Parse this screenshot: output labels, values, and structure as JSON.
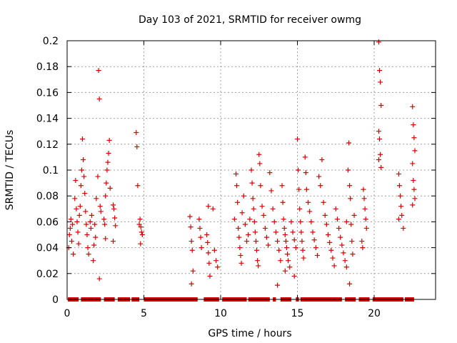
{
  "chart_data": {
    "type": "scatter",
    "title": "Day 103 of 2021, SRMTID for receiver owmg",
    "xlabel": "GPS time / hours",
    "ylabel": "SRMTID / TECUs",
    "xlim": [
      0,
      24
    ],
    "ylim": [
      0,
      0.2
    ],
    "xticks": [
      0,
      5,
      10,
      15,
      20
    ],
    "yticks": [
      0,
      0.02,
      0.04,
      0.06,
      0.08,
      0.1,
      0.12,
      0.14,
      0.16,
      0.18,
      0.2
    ],
    "ytick_labels": [
      "0",
      "0.02",
      "0.04",
      "0.06",
      "0.08",
      "0.1",
      "0.12",
      "0.14",
      "0.16",
      "0.18",
      "0.2"
    ],
    "grid": true,
    "marker": "+",
    "color": "#dd0000",
    "series": [
      {
        "name": "SRMTID",
        "points": [
          [
            0.1,
            0.04
          ],
          [
            0.15,
            0.05
          ],
          [
            0.2,
            0.055
          ],
          [
            0.25,
            0.062
          ],
          [
            0.3,
            0.045
          ],
          [
            0.35,
            0.058
          ],
          [
            0.4,
            0.035
          ],
          [
            0.5,
            0.078
          ],
          [
            0.55,
            0.092
          ],
          [
            0.6,
            0.07
          ],
          [
            0.65,
            0.06
          ],
          [
            0.7,
            0.052
          ],
          [
            0.75,
            0.043
          ],
          [
            0.8,
            0.065
          ],
          [
            0.85,
            0.072
          ],
          [
            0.9,
            0.088
          ],
          [
            0.95,
            0.1
          ],
          [
            1.0,
            0.124
          ],
          [
            1.05,
            0.108
          ],
          [
            1.1,
            0.095
          ],
          [
            1.15,
            0.082
          ],
          [
            1.2,
            0.068
          ],
          [
            1.25,
            0.058
          ],
          [
            1.3,
            0.05
          ],
          [
            1.35,
            0.04
          ],
          [
            1.4,
            0.035
          ],
          [
            1.5,
            0.06
          ],
          [
            1.55,
            0.055
          ],
          [
            1.6,
            0.065
          ],
          [
            1.7,
            0.03
          ],
          [
            1.75,
            0.042
          ],
          [
            1.8,
            0.058
          ],
          [
            1.85,
            0.048
          ],
          [
            1.9,
            0.078
          ],
          [
            2.0,
            0.095
          ],
          [
            2.05,
            0.177
          ],
          [
            2.1,
            0.155
          ],
          [
            2.15,
            0.072
          ],
          [
            2.2,
            0.068
          ],
          [
            2.1,
            0.016
          ],
          [
            2.4,
            0.062
          ],
          [
            2.45,
            0.058
          ],
          [
            2.5,
            0.08
          ],
          [
            2.55,
            0.09
          ],
          [
            2.6,
            0.1
          ],
          [
            2.65,
            0.106
          ],
          [
            2.7,
            0.113
          ],
          [
            2.75,
            0.123
          ],
          [
            2.8,
            0.086
          ],
          [
            2.5,
            0.047
          ],
          [
            3.0,
            0.073
          ],
          [
            3.05,
            0.07
          ],
          [
            3.1,
            0.063
          ],
          [
            3.15,
            0.057
          ],
          [
            3.0,
            0.045
          ],
          [
            4.5,
            0.129
          ],
          [
            4.55,
            0.118
          ],
          [
            4.6,
            0.088
          ],
          [
            4.75,
            0.062
          ],
          [
            4.8,
            0.056
          ],
          [
            4.85,
            0.052
          ],
          [
            4.9,
            0.05
          ],
          [
            4.78,
            0.043
          ],
          [
            4.7,
            0.058
          ],
          [
            8.0,
            0.064
          ],
          [
            8.05,
            0.056
          ],
          [
            8.1,
            0.045
          ],
          [
            8.15,
            0.038
          ],
          [
            8.2,
            0.022
          ],
          [
            8.1,
            0.012
          ],
          [
            8.6,
            0.062
          ],
          [
            8.65,
            0.055
          ],
          [
            8.7,
            0.048
          ],
          [
            8.75,
            0.04
          ],
          [
            9.1,
            0.05
          ],
          [
            9.15,
            0.044
          ],
          [
            9.2,
            0.036
          ],
          [
            9.25,
            0.028
          ],
          [
            9.3,
            0.018
          ],
          [
            9.2,
            0.072
          ],
          [
            9.5,
            0.07
          ],
          [
            9.6,
            0.038
          ],
          [
            9.7,
            0.03
          ],
          [
            9.8,
            0.025
          ],
          [
            10.9,
            0.062
          ],
          [
            11.0,
            0.097
          ],
          [
            11.05,
            0.088
          ],
          [
            11.1,
            0.075
          ],
          [
            11.15,
            0.055
          ],
          [
            11.2,
            0.048
          ],
          [
            11.25,
            0.04
          ],
          [
            11.3,
            0.034
          ],
          [
            11.35,
            0.028
          ],
          [
            11.4,
            0.067
          ],
          [
            11.5,
            0.08
          ],
          [
            11.6,
            0.058
          ],
          [
            11.7,
            0.045
          ],
          [
            11.8,
            0.05
          ],
          [
            11.9,
            0.062
          ],
          [
            12.0,
            0.1
          ],
          [
            12.05,
            0.09
          ],
          [
            12.1,
            0.078
          ],
          [
            12.15,
            0.07
          ],
          [
            12.2,
            0.06
          ],
          [
            12.25,
            0.052
          ],
          [
            12.3,
            0.045
          ],
          [
            12.35,
            0.038
          ],
          [
            12.4,
            0.03
          ],
          [
            12.45,
            0.026
          ],
          [
            12.5,
            0.112
          ],
          [
            12.55,
            0.105
          ],
          [
            12.6,
            0.088
          ],
          [
            12.7,
            0.072
          ],
          [
            12.8,
            0.065
          ],
          [
            12.9,
            0.055
          ],
          [
            13.0,
            0.048
          ],
          [
            13.1,
            0.042
          ],
          [
            13.2,
            0.098
          ],
          [
            13.3,
            0.084
          ],
          [
            13.4,
            0.07
          ],
          [
            13.5,
            0.06
          ],
          [
            13.6,
            0.052
          ],
          [
            13.7,
            0.045
          ],
          [
            13.8,
            0.038
          ],
          [
            13.9,
            0.03
          ],
          [
            14.0,
            0.088
          ],
          [
            14.05,
            0.075
          ],
          [
            14.1,
            0.062
          ],
          [
            14.15,
            0.055
          ],
          [
            14.2,
            0.05
          ],
          [
            14.25,
            0.045
          ],
          [
            14.3,
            0.04
          ],
          [
            14.35,
            0.035
          ],
          [
            14.4,
            0.03
          ],
          [
            14.5,
            0.025
          ],
          [
            14.6,
            0.06
          ],
          [
            14.7,
            0.052
          ],
          [
            14.8,
            0.046
          ],
          [
            14.9,
            0.04
          ],
          [
            15.0,
            0.124
          ],
          [
            15.05,
            0.1
          ],
          [
            15.1,
            0.085
          ],
          [
            15.15,
            0.07
          ],
          [
            15.2,
            0.06
          ],
          [
            15.25,
            0.052
          ],
          [
            15.3,
            0.045
          ],
          [
            15.35,
            0.038
          ],
          [
            15.4,
            0.032
          ],
          [
            13.7,
            0.011
          ],
          [
            14.2,
            0.022
          ],
          [
            14.8,
            0.018
          ],
          [
            15.5,
            0.11
          ],
          [
            15.55,
            0.098
          ],
          [
            15.6,
            0.085
          ],
          [
            15.7,
            0.075
          ],
          [
            15.8,
            0.068
          ],
          [
            15.9,
            0.06
          ],
          [
            16.0,
            0.052
          ],
          [
            16.1,
            0.046
          ],
          [
            16.2,
            0.04
          ],
          [
            16.3,
            0.034
          ],
          [
            16.4,
            0.095
          ],
          [
            16.5,
            0.088
          ],
          [
            16.6,
            0.108
          ],
          [
            16.7,
            0.075
          ],
          [
            16.8,
            0.065
          ],
          [
            16.9,
            0.058
          ],
          [
            17.0,
            0.05
          ],
          [
            17.1,
            0.044
          ],
          [
            17.2,
            0.038
          ],
          [
            17.3,
            0.032
          ],
          [
            17.4,
            0.026
          ],
          [
            17.5,
            0.07
          ],
          [
            17.6,
            0.062
          ],
          [
            17.7,
            0.055
          ],
          [
            17.8,
            0.048
          ],
          [
            17.9,
            0.042
          ],
          [
            18.0,
            0.036
          ],
          [
            18.1,
            0.03
          ],
          [
            18.2,
            0.06
          ],
          [
            18.3,
            0.1
          ],
          [
            18.35,
            0.121
          ],
          [
            18.4,
            0.088
          ],
          [
            18.45,
            0.078
          ],
          [
            18.5,
            0.058
          ],
          [
            18.55,
            0.045
          ],
          [
            18.6,
            0.035
          ],
          [
            18.2,
            0.025
          ],
          [
            18.4,
            0.012
          ],
          [
            18.7,
            0.065
          ],
          [
            19.3,
            0.085
          ],
          [
            19.35,
            0.078
          ],
          [
            19.4,
            0.07
          ],
          [
            19.45,
            0.062
          ],
          [
            19.5,
            0.055
          ],
          [
            19.2,
            0.045
          ],
          [
            19.25,
            0.04
          ],
          [
            20.3,
            0.199
          ],
          [
            20.35,
            0.177
          ],
          [
            20.4,
            0.168
          ],
          [
            20.45,
            0.15
          ],
          [
            20.3,
            0.13
          ],
          [
            20.35,
            0.124
          ],
          [
            20.4,
            0.112
          ],
          [
            20.45,
            0.102
          ],
          [
            20.3,
            0.108
          ],
          [
            21.6,
            0.097
          ],
          [
            21.65,
            0.088
          ],
          [
            21.7,
            0.08
          ],
          [
            21.75,
            0.072
          ],
          [
            21.8,
            0.065
          ],
          [
            21.6,
            0.062
          ],
          [
            21.9,
            0.055
          ],
          [
            22.5,
            0.149
          ],
          [
            22.55,
            0.135
          ],
          [
            22.6,
            0.125
          ],
          [
            22.65,
            0.115
          ],
          [
            22.5,
            0.105
          ],
          [
            22.55,
            0.092
          ],
          [
            22.6,
            0.085
          ],
          [
            22.65,
            0.078
          ],
          [
            22.5,
            0.073
          ]
        ]
      }
    ],
    "zero_segments": [
      [
        0.05,
        0.75
      ],
      [
        0.9,
        2.2
      ],
      [
        2.4,
        3.1
      ],
      [
        3.3,
        4.1
      ],
      [
        4.2,
        4.7
      ],
      [
        5.0,
        8.5
      ],
      [
        8.9,
        9.9
      ],
      [
        10.1,
        11.7
      ],
      [
        11.8,
        13.2
      ],
      [
        13.4,
        13.6
      ],
      [
        13.9,
        14.6
      ],
      [
        14.9,
        15.1
      ],
      [
        15.2,
        17.9
      ],
      [
        18.1,
        18.8
      ],
      [
        19.0,
        19.7
      ],
      [
        19.9,
        21.9
      ],
      [
        22.0,
        22.6
      ]
    ]
  }
}
